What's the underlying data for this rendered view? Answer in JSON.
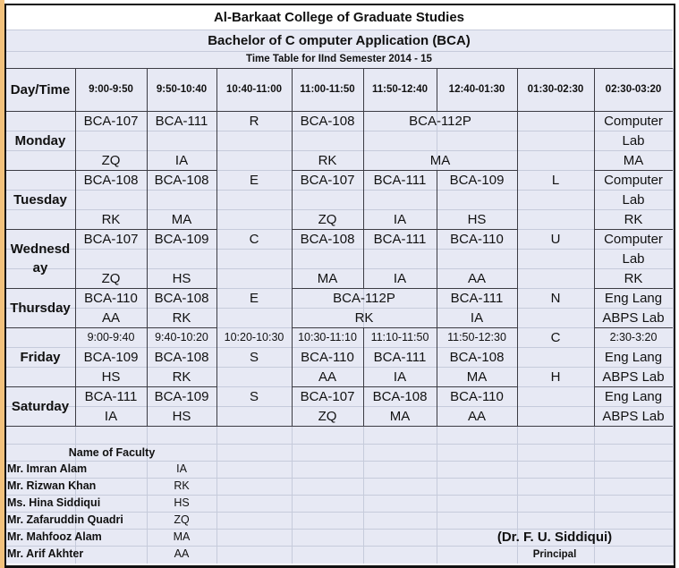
{
  "header": {
    "title": "Al-Barkaat College of Graduate Studies",
    "subtitle": "Bachelor of C omputer Application (BCA)",
    "semester": "Time Table for IInd Semester 2014 - 15",
    "day_time_label": "Day/Time",
    "times": [
      "9:00-9:50",
      "9:50-10:40",
      "10:40-11:00",
      "11:00-11:50",
      "11:50-12:40",
      "12:40-01:30",
      "01:30-02:30",
      "02:30-03:20"
    ]
  },
  "days": [
    {
      "name": "Monday",
      "recess": "R",
      "lunch": [],
      "lab": [
        "Computer",
        "Lab",
        "MA"
      ],
      "slots": [
        {
          "course": "BCA-107",
          "teacher": "ZQ"
        },
        {
          "course": "BCA-111",
          "teacher": "IA"
        },
        {
          "course": "BCA-108",
          "teacher": "RK"
        },
        {
          "course": "BCA-112P",
          "teacher": "MA"
        }
      ]
    },
    {
      "name": "Tuesday",
      "recess": "E",
      "lunch": [
        "L"
      ],
      "lab": [
        "Computer",
        "Lab",
        "RK"
      ],
      "slots": [
        {
          "course": "BCA-108",
          "teacher": "RK"
        },
        {
          "course": "BCA-108",
          "teacher": "MA"
        },
        {
          "course": "BCA-107",
          "teacher": "ZQ"
        },
        {
          "course": "BCA-111",
          "teacher": "IA"
        },
        {
          "course": "BCA-109",
          "teacher": "HS"
        }
      ]
    },
    {
      "name": "Wednesday",
      "recess": "C",
      "lunch": [
        "U"
      ],
      "lab": [
        "Computer",
        "Lab",
        "RK"
      ],
      "slots": [
        {
          "course": "BCA-107",
          "teacher": "ZQ"
        },
        {
          "course": "BCA-109",
          "teacher": "HS"
        },
        {
          "course": "BCA-108",
          "teacher": "MA"
        },
        {
          "course": "BCA-111",
          "teacher": "IA"
        },
        {
          "course": "BCA-110",
          "teacher": "AA"
        }
      ]
    },
    {
      "name": "Thursday",
      "recess": "E",
      "lunch": [
        "N"
      ],
      "lab": [
        "Eng Lang",
        "ABPS Lab"
      ],
      "slots": [
        {
          "course": "BCA-110",
          "teacher": "AA"
        },
        {
          "course": "BCA-108",
          "teacher": "RK"
        },
        {
          "course": "BCA-112P",
          "teacher": "RK"
        },
        {
          "course": "BCA-111",
          "teacher": "IA"
        }
      ]
    },
    {
      "name": "Friday",
      "recess": "S",
      "lunch": [
        "C",
        "H"
      ],
      "lab": [
        "Eng Lang",
        "ABPS Lab"
      ],
      "times": [
        "9:00-9:40",
        "9:40-10:20",
        "10:20-10:30",
        "10:30-11:10",
        "11:10-11:50",
        "11:50-12:30",
        "2:30-3:20"
      ],
      "slots": [
        {
          "course": "BCA-109",
          "teacher": "HS"
        },
        {
          "course": "BCA-108",
          "teacher": "RK"
        },
        {
          "course": "BCA-110",
          "teacher": "AA"
        },
        {
          "course": "BCA-111",
          "teacher": "IA"
        },
        {
          "course": "BCA-108",
          "teacher": "MA"
        }
      ]
    },
    {
      "name": "Saturday",
      "recess": "S",
      "lunch": [],
      "lab": [
        "Eng Lang",
        "ABPS Lab"
      ],
      "slots": [
        {
          "course": "BCA-111",
          "teacher": "IA"
        },
        {
          "course": "BCA-109",
          "teacher": "HS"
        },
        {
          "course": "BCA-107",
          "teacher": "ZQ"
        },
        {
          "course": "BCA-108",
          "teacher": "MA"
        },
        {
          "course": "BCA-110",
          "teacher": "AA"
        }
      ]
    }
  ],
  "faculty": {
    "heading": "Name of Faculty",
    "members": [
      {
        "name": "Mr. Imran Alam",
        "code": "IA"
      },
      {
        "name": "Mr. Rizwan Khan",
        "code": "RK"
      },
      {
        "name": "Ms. Hina Siddiqui",
        "code": "HS"
      },
      {
        "name": "Mr. Zafaruddin Quadri",
        "code": "ZQ"
      },
      {
        "name": "Mr. Mahfooz Alam",
        "code": "MA"
      },
      {
        "name": "Mr. Arif Akhter",
        "code": "AA"
      }
    ]
  },
  "signature": {
    "name": "(Dr. F. U. Siddiqui)",
    "title": "Principal"
  }
}
